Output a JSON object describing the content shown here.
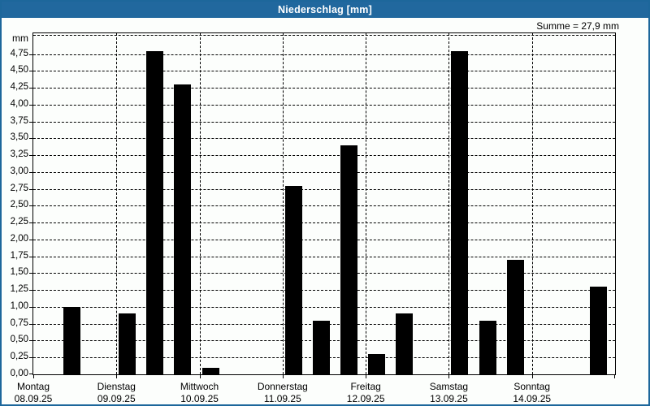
{
  "window": {
    "title": "Niederschlag [mm]"
  },
  "summary": {
    "label": "Summe = 27,9 mm",
    "sum_value_mm": 27.9
  },
  "colors": {
    "titlebar_background": "#21689E",
    "titlebar_text": "#FFFFFF",
    "window_border": "#1D679B",
    "plot_background": "#FCFEFC",
    "bar_fill": "#000000",
    "grid": "#000000"
  },
  "chart_data": {
    "type": "bar",
    "title": "Niederschlag [mm]",
    "unit_label": "mm",
    "ylabel": "mm",
    "ylim": [
      0,
      5.06
    ],
    "y_tick_step": 0.25,
    "y_ticks": [
      "0,00",
      "0,25",
      "0,50",
      "0,75",
      "1,00",
      "1,25",
      "1,50",
      "1,75",
      "2,00",
      "2,25",
      "2,50",
      "2,75",
      "3,00",
      "3,25",
      "3,50",
      "3,75",
      "4,00",
      "4,25",
      "4,50",
      "4,75"
    ],
    "grid": "dashed",
    "sum_label": "Summe = 27,9 mm",
    "slots_per_day": 3,
    "days": [
      {
        "label": "Montag",
        "date": "08.09.25",
        "slots": [
          null,
          1.0,
          null
        ]
      },
      {
        "label": "Dienstag",
        "date": "09.09.25",
        "slots": [
          0.9,
          4.8,
          4.3
        ]
      },
      {
        "label": "Mittwoch",
        "date": "10.09.25",
        "slots": [
          0.1,
          null,
          null
        ]
      },
      {
        "label": "Donnerstag",
        "date": "11.09.25",
        "slots": [
          2.8,
          0.8,
          3.4
        ]
      },
      {
        "label": "Freitag",
        "date": "12.09.25",
        "slots": [
          0.3,
          0.9,
          null
        ]
      },
      {
        "label": "Samstag",
        "date": "13.09.25",
        "slots": [
          4.8,
          0.8,
          1.7
        ]
      },
      {
        "label": "Sonntag",
        "date": "14.09.25",
        "slots": [
          null,
          null,
          1.3
        ]
      }
    ]
  }
}
